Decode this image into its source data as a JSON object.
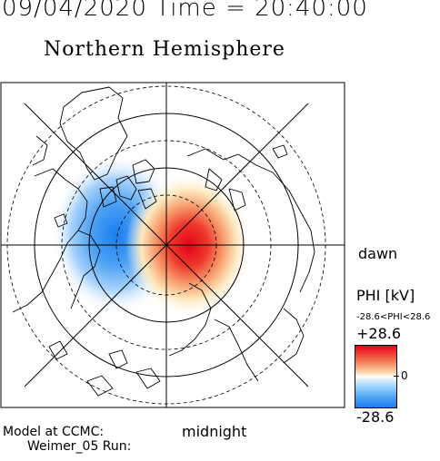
{
  "header": {
    "datetime": "09/04/2020 Time = 20:40:00",
    "hemisphere": "Northern Hemisphere"
  },
  "map": {
    "pole": "north",
    "labels": {
      "dawn": "dawn",
      "midnight": "midnight"
    },
    "potential_pattern": {
      "positive_cell": "dawn side",
      "negative_cell": "dusk side"
    }
  },
  "colorbar": {
    "title": "PHI [kV]",
    "range_text": "-28.6<PHI<28.6",
    "max_label": "+28.6",
    "mid_label": "0",
    "min_label": "-28.6",
    "max": 28.6,
    "min": -28.6,
    "colors": {
      "max": "#e8001a",
      "mid": "#fffff4",
      "min": "#1a7df0"
    }
  },
  "footer": {
    "model_line": "Model at CCMC:",
    "run_line": "Weimer_05 Run:"
  }
}
